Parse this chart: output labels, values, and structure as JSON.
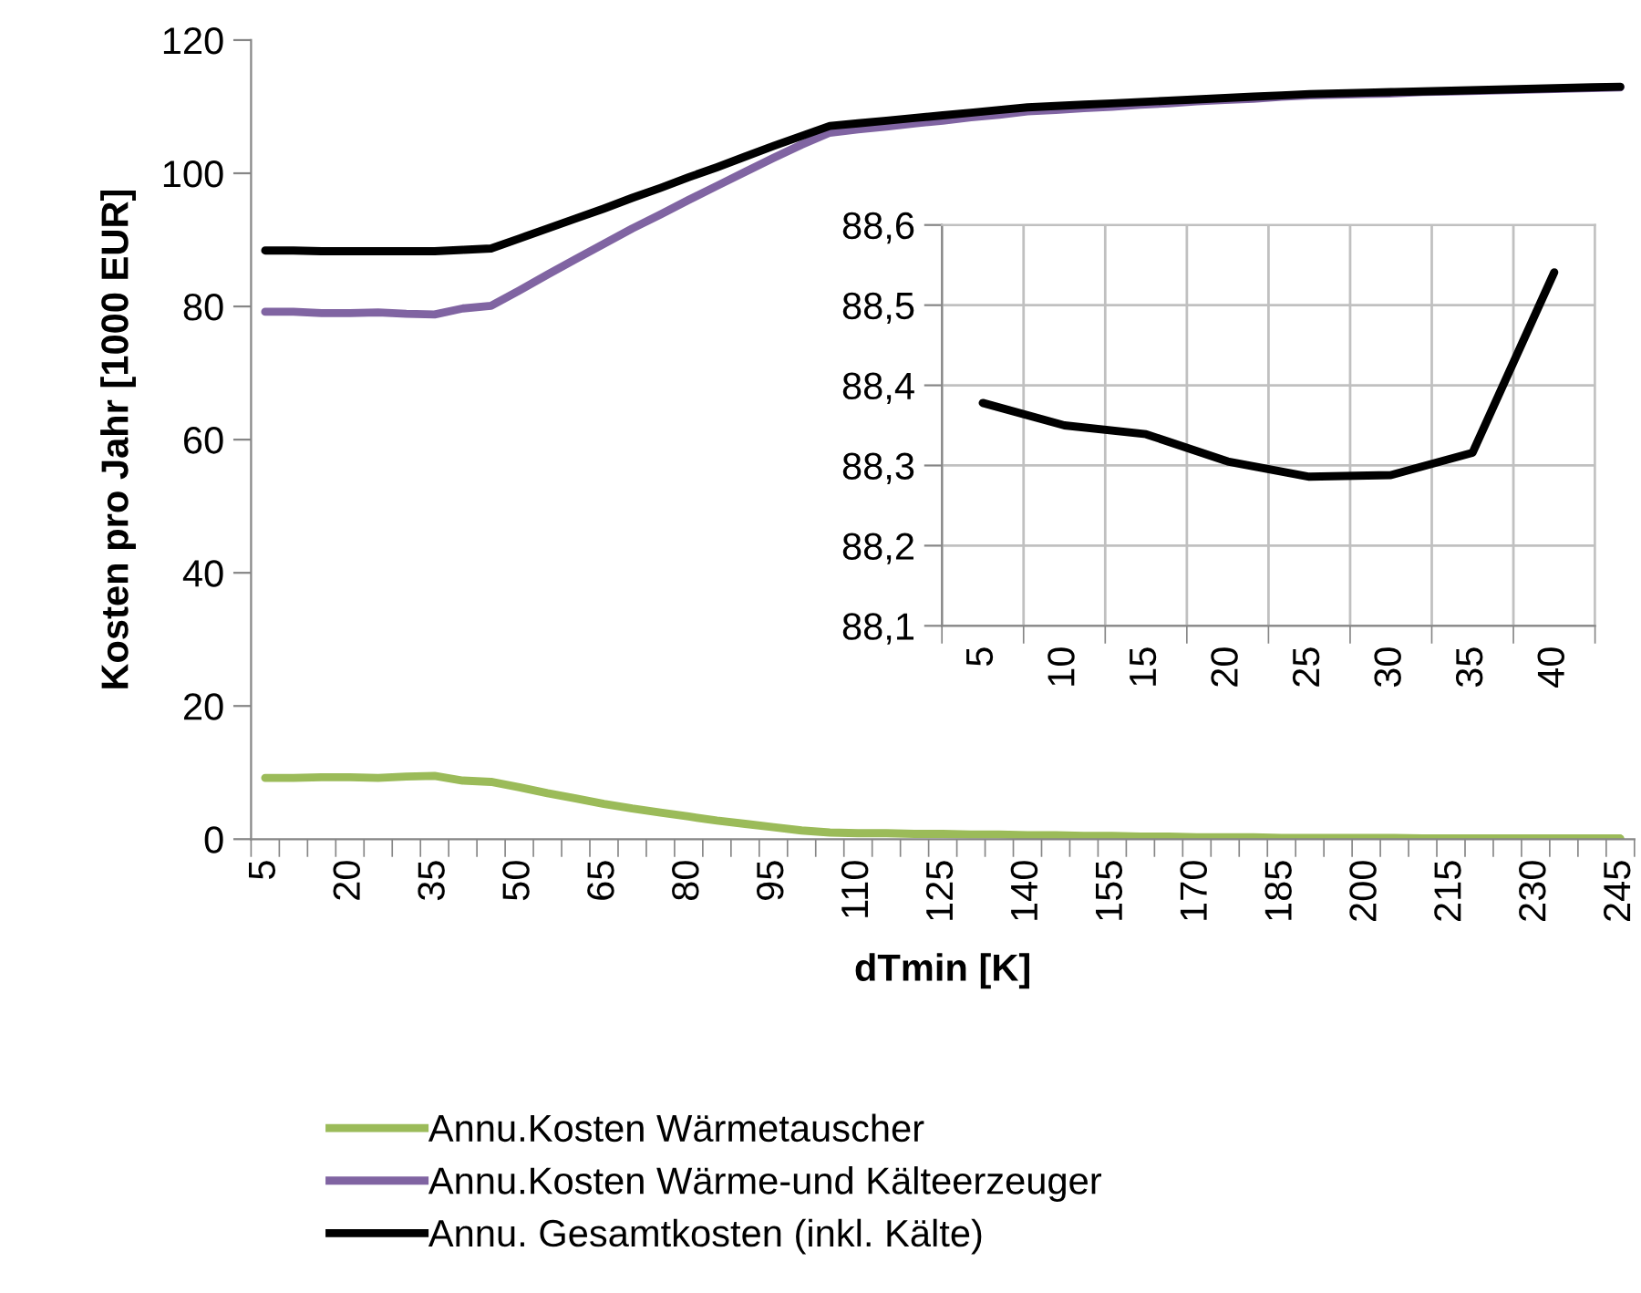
{
  "chart_data": [
    {
      "type": "line",
      "xlabel": "dTmin [K]",
      "ylabel": "Kosten pro Jahr [1000 EUR]",
      "categories": [
        "5",
        null,
        null,
        "20",
        null,
        null,
        "35",
        null,
        null,
        "50",
        null,
        null,
        "65",
        null,
        null,
        "80",
        null,
        null,
        "95",
        null,
        null,
        "110",
        null,
        null,
        "125",
        null,
        null,
        "140",
        null,
        null,
        "155",
        null,
        null,
        "170",
        null,
        null,
        "185",
        null,
        null,
        "200",
        null,
        null,
        "215",
        null,
        null,
        "230",
        null,
        null,
        "245"
      ],
      "series": [
        {
          "name": "Annu.Kosten Wärmetauscher",
          "color": "#9bbb59",
          "values": [
            9.2,
            9.2,
            9.3,
            9.3,
            9.2,
            9.4,
            9.5,
            8.8,
            8.6,
            7.8,
            6.9,
            6.1,
            5.3,
            4.6,
            4.0,
            3.4,
            2.8,
            2.3,
            1.8,
            1.3,
            1.0,
            0.9,
            0.9,
            0.8,
            0.8,
            0.7,
            0.7,
            0.6,
            0.6,
            0.5,
            0.5,
            0.4,
            0.4,
            0.3,
            0.3,
            0.3,
            0.2,
            0.2,
            0.2,
            0.2,
            0.2,
            0.1,
            0.1,
            0.1,
            0.1,
            0.1,
            0.1,
            0.1,
            0.1
          ]
        },
        {
          "name": "Annu.Kosten Wärme-und Kälteerzeuger",
          "color": "#8064a2",
          "values": [
            79.2,
            79.2,
            79.0,
            79.0,
            79.1,
            78.9,
            78.8,
            79.7,
            80.1,
            82.4,
            84.8,
            87.1,
            89.4,
            91.7,
            93.8,
            96.0,
            98.1,
            100.2,
            102.3,
            104.3,
            106.1,
            106.6,
            107.0,
            107.5,
            107.9,
            108.4,
            108.8,
            109.3,
            109.5,
            109.8,
            110.0,
            110.3,
            110.5,
            110.8,
            111.0,
            111.2,
            111.5,
            111.7,
            111.8,
            111.9,
            112.0,
            112.2,
            112.3,
            112.4,
            112.5,
            112.6,
            112.7,
            112.8,
            112.9
          ]
        },
        {
          "name": "Annu. Gesamtkosten (inkl. Kälte)",
          "color": "#000000",
          "values": [
            88.4,
            88.4,
            88.3,
            88.3,
            88.3,
            88.3,
            88.3,
            88.5,
            88.7,
            90.2,
            91.7,
            93.2,
            94.7,
            96.3,
            97.8,
            99.4,
            100.9,
            102.5,
            104.1,
            105.6,
            107.1,
            107.5,
            107.9,
            108.3,
            108.7,
            109.1,
            109.5,
            109.9,
            110.1,
            110.3,
            110.5,
            110.7,
            110.9,
            111.1,
            111.3,
            111.5,
            111.7,
            111.9,
            112.0,
            112.1,
            112.2,
            112.3,
            112.4,
            112.5,
            112.6,
            112.7,
            112.8,
            112.9,
            113.0
          ]
        }
      ],
      "ylim": [
        0,
        120
      ],
      "yticks": [
        0,
        20,
        40,
        60,
        80,
        100,
        120
      ],
      "grid": false,
      "legend": "bottom"
    },
    {
      "type": "line",
      "categories": [
        "5",
        "10",
        "15",
        "20",
        "25",
        "30",
        "35",
        "40"
      ],
      "series": [
        {
          "color": "#000000",
          "values": [
            88.378,
            88.35,
            88.339,
            88.305,
            88.286,
            88.288,
            88.316,
            88.541
          ]
        }
      ],
      "ylim": [
        88.1,
        88.6
      ],
      "yticks": [
        {
          "value": 88.1,
          "label": "88,1"
        },
        {
          "value": 88.2,
          "label": "88,2"
        },
        {
          "value": 88.3,
          "label": "88,3"
        },
        {
          "value": 88.4,
          "label": "88,4"
        },
        {
          "value": 88.5,
          "label": "88,5"
        },
        {
          "value": 88.6,
          "label": "88,6"
        }
      ],
      "grid": true
    }
  ]
}
